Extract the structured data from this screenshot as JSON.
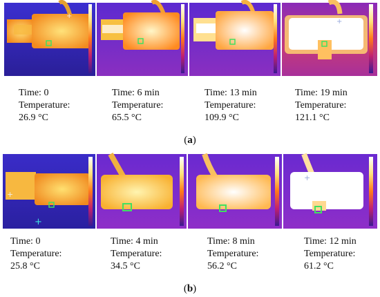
{
  "panel_a": {
    "label": "a",
    "frames": [
      {
        "time": "Time: 0",
        "temp_label": "Temperature:",
        "temp": "26.9 °C"
      },
      {
        "time": "Time: 6 min",
        "temp_label": "Temperature:",
        "temp": "65.5 °C"
      },
      {
        "time": "Time: 13 min",
        "temp_label": "Temperature:",
        "temp": "109.9 °C"
      },
      {
        "time": "Time: 19 min",
        "temp_label": "Temperature:",
        "temp": "121.1 °C"
      }
    ]
  },
  "panel_b": {
    "label": "b",
    "frames": [
      {
        "time": "Time: 0",
        "temp_label": "Temperature:",
        "temp": "25.8 °C"
      },
      {
        "time": "Time: 4 min",
        "temp_label": "Temperature:",
        "temp": "34.5 °C"
      },
      {
        "time": "Time: 8 min",
        "temp_label": "Temperature:",
        "temp": "56.2 °C"
      },
      {
        "time": "Time: 12 min",
        "temp_label": "Temperature:",
        "temp": "61.2 °C"
      }
    ]
  }
}
